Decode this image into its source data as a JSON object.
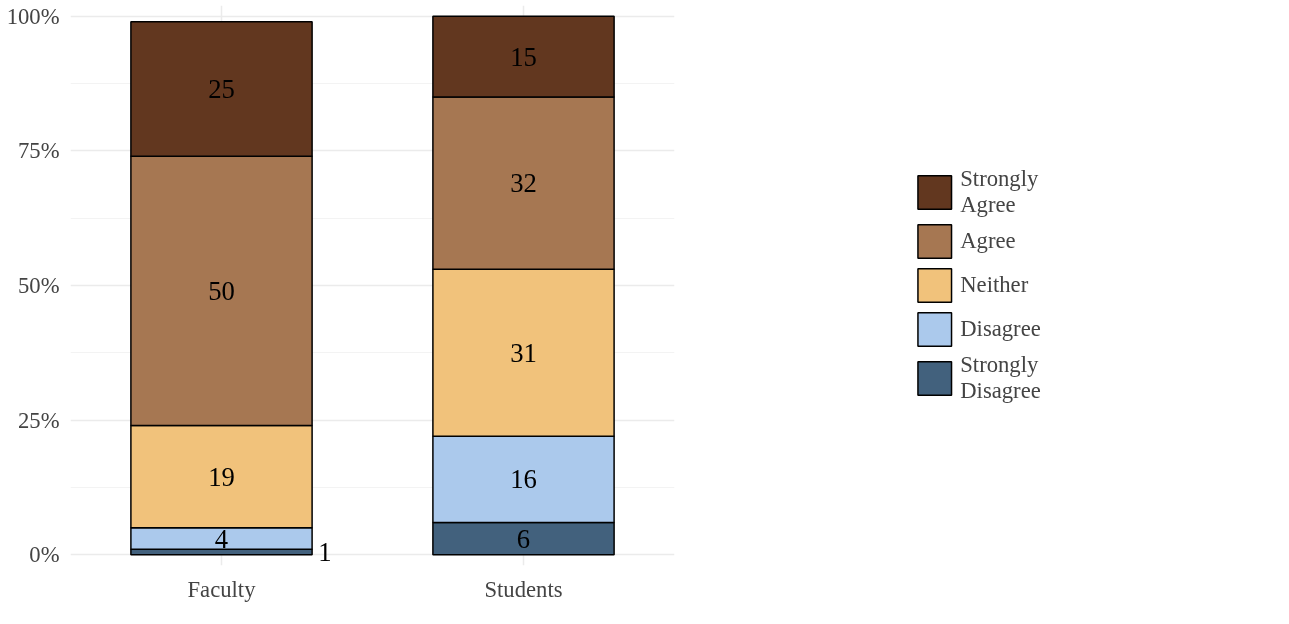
{
  "chart_data": {
    "type": "bar",
    "stacked": true,
    "categories": [
      "Faculty",
      "Students"
    ],
    "series": [
      {
        "name": "Strongly Disagree",
        "color": "#42617d",
        "values": [
          1,
          6
        ]
      },
      {
        "name": "Disagree",
        "color": "#abc9ec",
        "values": [
          4,
          16
        ]
      },
      {
        "name": "Neither",
        "color": "#f1c27b",
        "values": [
          19,
          31
        ]
      },
      {
        "name": "Agree",
        "color": "#a67752",
        "values": [
          50,
          32
        ]
      },
      {
        "name": "Strongly Agree",
        "color": "#62371f",
        "values": [
          25,
          15
        ]
      }
    ],
    "ylim": [
      -2,
      102
    ],
    "yticks": [
      {
        "value": 0,
        "label": "0%"
      },
      {
        "value": 25,
        "label": "25%"
      },
      {
        "value": 50,
        "label": "50%"
      },
      {
        "value": 75,
        "label": "75%"
      },
      {
        "value": 100,
        "label": "100%"
      }
    ],
    "grid": true,
    "legend": "right",
    "data_labels": true
  }
}
